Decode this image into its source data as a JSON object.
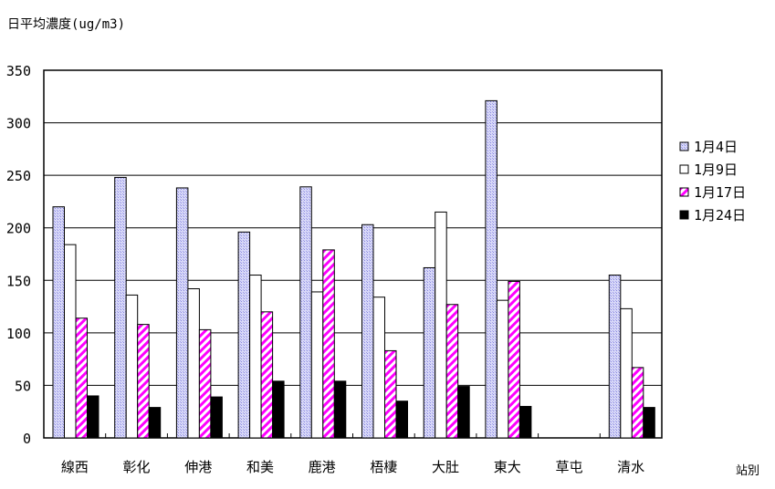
{
  "chart_data": {
    "type": "bar",
    "ylabel": "日平均濃度(ug/m3)",
    "xlabel": "站別",
    "ylim": [
      0,
      350
    ],
    "yticks": [
      0,
      50,
      100,
      150,
      200,
      250,
      300,
      350
    ],
    "grid": true,
    "legend_placement": "right",
    "categories": [
      "線西",
      "彰化",
      "伸港",
      "和美",
      "鹿港",
      "梧棲",
      "大肚",
      "東大",
      "草屯",
      "清水"
    ],
    "series": [
      {
        "name": "1月4日",
        "color": "#b8b8f0",
        "pattern": "dots",
        "values": [
          220,
          248,
          238,
          196,
          239,
          203,
          162,
          321,
          null,
          155
        ]
      },
      {
        "name": "1月9日",
        "color": "#ffffff",
        "pattern": "solid",
        "values": [
          184,
          136,
          142,
          155,
          139,
          134,
          215,
          131,
          null,
          123
        ]
      },
      {
        "name": "1月17日",
        "color": "#ff00ff",
        "pattern": "diagonal",
        "values": [
          114,
          108,
          103,
          120,
          179,
          83,
          127,
          149,
          null,
          67
        ]
      },
      {
        "name": "1月24日",
        "color": "#000000",
        "pattern": "solid",
        "values": [
          40,
          29,
          39,
          54,
          54,
          35,
          49,
          30,
          null,
          29
        ]
      }
    ]
  }
}
